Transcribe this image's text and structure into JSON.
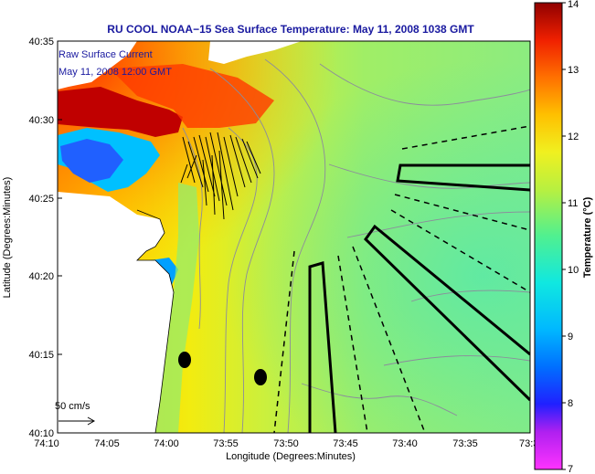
{
  "title": "RU COOL  NOAA−15  Sea Surface Temperature:  May 11, 2008 1038 GMT",
  "annotation": {
    "line1": "Raw Surface Current",
    "line2": "May 11, 2008 12:00 GMT"
  },
  "scale_label": "50 cm/s",
  "x_axis": {
    "label": "Longitude (Degrees:Minutes)",
    "ticks": [
      "74:10",
      "74:05",
      "74:00",
      "73:55",
      "73:50",
      "73:45",
      "73:40",
      "73:35",
      "73:3"
    ]
  },
  "y_axis": {
    "label": "Latitude (Degrees:Minutes)",
    "ticks": [
      "40:35",
      "40:30",
      "40:25",
      "40:20",
      "40:15",
      "40:10"
    ]
  },
  "colorbar": {
    "label": "Temperature (°C)",
    "ticks": [
      "14",
      "13",
      "12",
      "11",
      "10",
      "9",
      "8",
      "7"
    ],
    "range": [
      7,
      14
    ],
    "colors": [
      "#ff33ff",
      "#6a00d8",
      "#0010ff",
      "#0070ff",
      "#00c8ff",
      "#20e8c8",
      "#60f080",
      "#b8f040",
      "#f0f020",
      "#ffc000",
      "#ff8000",
      "#ff3000",
      "#e00000",
      "#900000"
    ]
  },
  "palette": {
    "land": "#ffffff",
    "title_color": "#1a1aa0",
    "outline": "#000000",
    "contour": "#8c8c9c"
  }
}
